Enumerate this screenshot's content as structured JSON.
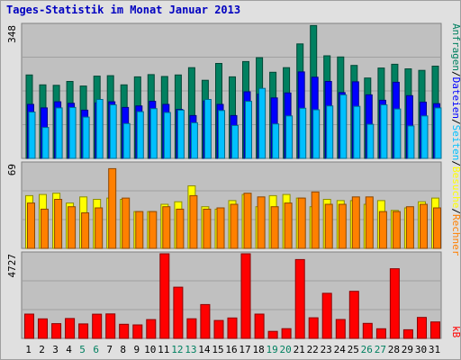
{
  "title": "Tages-Statistik im Monat Januar 2013",
  "colors": {
    "background": "#e0e0e0",
    "panel": "#c0c0c0",
    "anfragen": "#008060",
    "dateien": "#0000ff",
    "seiten": "#00c0ff",
    "besuche": "#ffff00",
    "rechner": "#ff8000",
    "kb": "#ff0000",
    "weekend_day_label": "#008060",
    "weekday_day_label": "#000000"
  },
  "chart_data": [
    {
      "type": "bar",
      "panel": "top",
      "y_max_label": "348",
      "ylim": [
        0,
        348
      ],
      "categories": [
        "1",
        "2",
        "3",
        "4",
        "5",
        "6",
        "7",
        "8",
        "9",
        "10",
        "11",
        "12",
        "13",
        "14",
        "15",
        "16",
        "17",
        "18",
        "19",
        "20",
        "21",
        "22",
        "23",
        "24",
        "25",
        "26",
        "27",
        "28",
        "29",
        "30",
        "31"
      ],
      "series": [
        {
          "name": "Anfragen",
          "values": [
            218,
            192,
            191,
            201,
            189,
            215,
            216,
            192,
            213,
            219,
            214,
            218,
            237,
            204,
            248,
            213,
            253,
            263,
            225,
            237,
            299,
            347,
            268,
            265,
            243,
            210,
            236,
            246,
            234,
            230,
            241
          ]
        },
        {
          "name": "Dateien",
          "values": [
            141,
            132,
            148,
            144,
            126,
            145,
            148,
            133,
            137,
            149,
            141,
            128,
            112,
            150,
            141,
            112,
            174,
            168,
            158,
            171,
            226,
            212,
            201,
            172,
            200,
            166,
            152,
            199,
            164,
            147,
            143
          ]
        },
        {
          "name": "Seiten",
          "values": [
            121,
            81,
            132,
            133,
            108,
            154,
            140,
            91,
            122,
            130,
            120,
            126,
            93,
            154,
            125,
            86,
            149,
            183,
            90,
            111,
            131,
            127,
            137,
            166,
            136,
            89,
            140,
            129,
            85,
            111,
            132
          ]
        }
      ]
    },
    {
      "type": "bar",
      "panel": "middle",
      "y_max_label": "69",
      "ylim": [
        0,
        69
      ],
      "categories": [
        "1",
        "2",
        "3",
        "4",
        "5",
        "6",
        "7",
        "8",
        "9",
        "10",
        "11",
        "12",
        "13",
        "14",
        "15",
        "16",
        "17",
        "18",
        "19",
        "20",
        "21",
        "22",
        "23",
        "24",
        "25",
        "26",
        "27",
        "28",
        "29",
        "30",
        "31"
      ],
      "series": [
        {
          "name": "Besuche",
          "values": [
            43,
            44,
            45,
            37,
            42,
            40,
            41,
            40,
            30,
            30,
            36,
            38,
            51,
            34,
            32,
            39,
            44,
            34,
            43,
            44,
            41,
            34,
            40,
            39,
            39,
            36,
            39,
            31,
            33,
            38,
            41
          ]
        },
        {
          "name": "Rechner",
          "values": [
            37,
            32,
            40,
            34,
            29,
            33,
            65,
            41,
            30,
            30,
            34,
            32,
            43,
            32,
            33,
            36,
            45,
            42,
            34,
            37,
            41,
            46,
            36,
            36,
            42,
            42,
            30,
            30,
            34,
            36,
            33
          ]
        }
      ]
    },
    {
      "type": "bar",
      "panel": "bottom",
      "y_max_label": "4727",
      "ylim": [
        0,
        4727
      ],
      "categories": [
        "1",
        "2",
        "3",
        "4",
        "5",
        "6",
        "7",
        "8",
        "9",
        "10",
        "11",
        "12",
        "13",
        "14",
        "15",
        "16",
        "17",
        "18",
        "19",
        "20",
        "21",
        "22",
        "23",
        "24",
        "25",
        "26",
        "27",
        "28",
        "29",
        "30",
        "31"
      ],
      "series": [
        {
          "name": "kB",
          "values": [
            1360,
            1090,
            825,
            1110,
            810,
            1355,
            1368,
            789,
            755,
            1050,
            4727,
            2860,
            1095,
            1890,
            1000,
            1140,
            4727,
            1360,
            390,
            545,
            4405,
            1150,
            2520,
            1055,
            2630,
            840,
            540,
            3890,
            485,
            1170,
            920
          ]
        }
      ]
    }
  ],
  "day_labels": {
    "weekend_days": [
      "5",
      "6",
      "12",
      "13",
      "19",
      "20",
      "26",
      "27"
    ]
  },
  "legend": {
    "right_top": [
      "Anfragen",
      "/",
      "Dateien",
      "/",
      "Seiten",
      "/",
      "Besuche",
      "/",
      "Rechner"
    ],
    "right_bottom": "kB"
  }
}
